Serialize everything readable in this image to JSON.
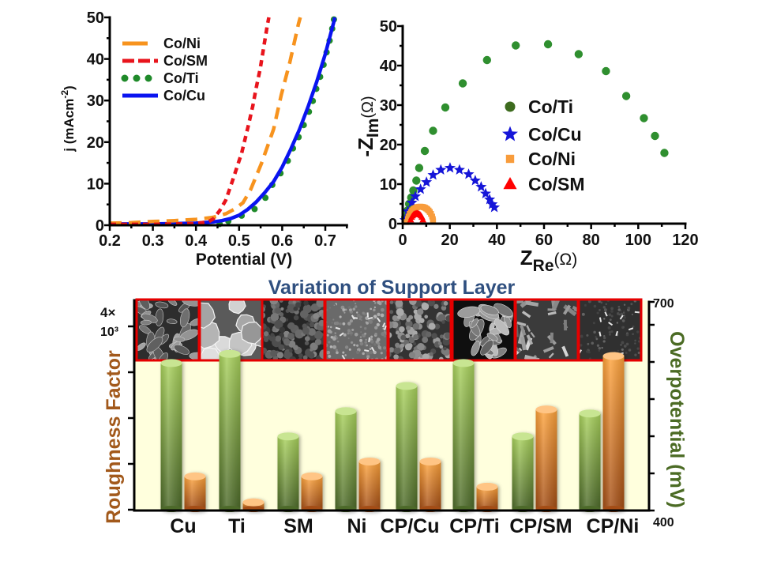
{
  "chart_data": [
    {
      "type": "line",
      "title": "",
      "xlabel": "Potential (V)",
      "ylabel": {
        "text": "j (mAcm",
        "sup": "-2",
        "tail": ")"
      },
      "xlim": [
        0.2,
        0.75
      ],
      "ylim": [
        0,
        50
      ],
      "xticks": [
        "0.2",
        "0.3",
        "0.4",
        "0.5",
        "0.6",
        "0.7"
      ],
      "yticks": [
        "0",
        "10",
        "20",
        "30",
        "40",
        "50"
      ],
      "grid": false,
      "legend": "top-left",
      "series": [
        {
          "name": "Co/Ni",
          "style": "long-dash",
          "color": "#f7931e",
          "points": [
            [
              0.2,
              0.5
            ],
            [
              0.25,
              0.6
            ],
            [
              0.3,
              0.9
            ],
            [
              0.35,
              1.1
            ],
            [
              0.4,
              1.4
            ],
            [
              0.44,
              1.9
            ],
            [
              0.47,
              2.8
            ],
            [
              0.49,
              3.9
            ],
            [
              0.509,
              5.4
            ],
            [
              0.527,
              8.6
            ],
            [
              0.552,
              14.9
            ],
            [
              0.58,
              23.1
            ],
            [
              0.598,
              31.4
            ],
            [
              0.618,
              39.3
            ],
            [
              0.638,
              48.5
            ],
            [
              0.642,
              50
            ]
          ]
        },
        {
          "name": "Co/SM",
          "style": "short-dash",
          "color": "#e8141c",
          "points": [
            [
              0.2,
              0.2
            ],
            [
              0.3,
              0.2
            ],
            [
              0.4,
              0.4
            ],
            [
              0.43,
              0.9
            ],
            [
              0.44,
              1.5
            ],
            [
              0.455,
              3.5
            ],
            [
              0.469,
              6.0
            ],
            [
              0.484,
              10.5
            ],
            [
              0.506,
              17.4
            ],
            [
              0.521,
              23.8
            ],
            [
              0.532,
              28.8
            ],
            [
              0.539,
              32.7
            ],
            [
              0.549,
              37.7
            ],
            [
              0.558,
              43.4
            ],
            [
              0.565,
              47.8
            ],
            [
              0.569,
              50
            ]
          ]
        },
        {
          "name": "Co/Ti",
          "style": "dotted",
          "color": "#1f8a2a",
          "points": [
            [
              0.455,
              0.3
            ],
            [
              0.475,
              1.0
            ],
            [
              0.506,
              2.3
            ],
            [
              0.536,
              3.9
            ],
            [
              0.561,
              6.6
            ],
            [
              0.577,
              9.7
            ],
            [
              0.596,
              12.5
            ],
            [
              0.613,
              15.5
            ],
            [
              0.625,
              18.5
            ],
            [
              0.638,
              21.2
            ],
            [
              0.65,
              24.1
            ],
            [
              0.662,
              27.3
            ],
            [
              0.671,
              29.9
            ],
            [
              0.679,
              32.8
            ],
            [
              0.688,
              35.7
            ],
            [
              0.696,
              38.6
            ],
            [
              0.703,
              41.6
            ],
            [
              0.71,
              44.4
            ],
            [
              0.716,
              47.3
            ],
            [
              0.72,
              49.5
            ]
          ]
        },
        {
          "name": "Co/Cu",
          "style": "solid",
          "color": "#0a14f0",
          "points": [
            [
              0.2,
              0.3
            ],
            [
              0.3,
              0.3
            ],
            [
              0.4,
              0.5
            ],
            [
              0.44,
              0.8
            ],
            [
              0.46,
              1.1
            ],
            [
              0.48,
              1.6
            ],
            [
              0.5,
              2.4
            ],
            [
              0.52,
              3.8
            ],
            [
              0.54,
              5.6
            ],
            [
              0.56,
              7.9
            ],
            [
              0.58,
              10.5
            ],
            [
              0.6,
              14.0
            ],
            [
              0.62,
              18.3
            ],
            [
              0.64,
              23.0
            ],
            [
              0.66,
              28.5
            ],
            [
              0.68,
              34.5
            ],
            [
              0.7,
              41.2
            ],
            [
              0.72,
              49.0
            ],
            [
              0.722,
              50
            ]
          ]
        }
      ]
    },
    {
      "type": "scatter",
      "title": "",
      "xlabel": {
        "text": "Z",
        "sub": "Re",
        "tail": "(Ω)"
      },
      "ylabel": {
        "text": "-Z",
        "sub": "Im",
        "tail": "(Ω)"
      },
      "xlim": [
        0,
        120
      ],
      "ylim": [
        0,
        50
      ],
      "xticks": [
        "0",
        "20",
        "40",
        "60",
        "80",
        "100",
        "120"
      ],
      "yticks": [
        "0",
        "10",
        "20",
        "30",
        "40",
        "50"
      ],
      "grid": false,
      "legend": "center",
      "series": [
        {
          "name": "Co/Ti",
          "marker": "circle",
          "color": "#2f8f2f",
          "legend_color": "#3d6b1e",
          "points": [
            [
              1.1,
              1.6
            ],
            [
              2.0,
              3.3
            ],
            [
              2.7,
              5.0
            ],
            [
              3.6,
              6.6
            ],
            [
              4.5,
              8.4
            ],
            [
              5.8,
              10.9
            ],
            [
              7.0,
              14.1
            ],
            [
              9.4,
              18.4
            ],
            [
              12.9,
              23.5
            ],
            [
              18.1,
              29.4
            ],
            [
              25.5,
              35.5
            ],
            [
              35.8,
              41.4
            ],
            [
              48.0,
              45.1
            ],
            [
              61.7,
              45.4
            ],
            [
              74.7,
              42.9
            ],
            [
              86.3,
              38.6
            ],
            [
              94.9,
              32.3
            ],
            [
              102.4,
              26.7
            ],
            [
              107.1,
              22.2
            ],
            [
              111.1,
              17.9
            ]
          ]
        },
        {
          "name": "Co/Cu",
          "marker": "star",
          "color": "#1515d8",
          "legend_color": "#1515d8",
          "points": [
            [
              1.0,
              0.9
            ],
            [
              2.2,
              3.1
            ],
            [
              3.9,
              5.3
            ],
            [
              5.4,
              6.9
            ],
            [
              7.6,
              8.7
            ],
            [
              10.1,
              10.5
            ],
            [
              12.9,
              12.3
            ],
            [
              16.2,
              13.6
            ],
            [
              20.1,
              14.1
            ],
            [
              24.1,
              13.6
            ],
            [
              28.0,
              12.5
            ],
            [
              30.8,
              10.9
            ],
            [
              33.3,
              9.3
            ],
            [
              35.2,
              7.6
            ],
            [
              36.9,
              6.1
            ],
            [
              38.0,
              4.9
            ],
            [
              38.9,
              4.1
            ]
          ]
        },
        {
          "name": "Co/Ni",
          "marker": "square",
          "color": "#f89c3c",
          "legend_color": "#f89c3c",
          "points": [
            [
              1.6,
              0.4
            ],
            [
              2.2,
              1.15
            ],
            [
              2.5,
              1.79
            ],
            [
              3.0,
              2.47
            ],
            [
              3.5,
              2.95
            ],
            [
              4.0,
              3.32
            ],
            [
              4.5,
              3.6
            ],
            [
              5.0,
              3.83
            ],
            [
              5.5,
              4.01
            ],
            [
              6.0,
              4.14
            ],
            [
              6.5,
              4.23
            ],
            [
              7.0,
              4.28
            ],
            [
              7.5,
              4.3
            ],
            [
              8.0,
              4.28
            ],
            [
              8.5,
              4.23
            ],
            [
              9.0,
              4.14
            ],
            [
              9.5,
              4.01
            ],
            [
              10.0,
              3.83
            ],
            [
              10.5,
              3.6
            ],
            [
              11.0,
              3.32
            ],
            [
              11.5,
              2.95
            ],
            [
              12.0,
              2.47
            ],
            [
              12.5,
              1.79
            ],
            [
              12.8,
              1.15
            ],
            [
              12.9,
              0.6
            ]
          ]
        },
        {
          "name": "Co/SM",
          "marker": "triangle",
          "color": "#ff0000",
          "legend_color": "#ff0000",
          "points": [
            [
              3.4,
              0.96
            ],
            [
              3.8,
              1.61
            ],
            [
              4.2,
              1.99
            ],
            [
              4.6,
              2.25
            ],
            [
              5.0,
              2.43
            ],
            [
              5.4,
              2.54
            ],
            [
              5.8,
              2.59
            ],
            [
              6.2,
              2.59
            ],
            [
              6.6,
              2.54
            ],
            [
              7.0,
              2.43
            ],
            [
              7.4,
              2.25
            ],
            [
              7.8,
              1.99
            ],
            [
              8.2,
              1.61
            ],
            [
              8.6,
              0.96
            ]
          ]
        }
      ]
    },
    {
      "type": "bar",
      "title": "Variation of Support Layer",
      "categories": [
        "Cu",
        "Ti",
        "SM",
        "Ni",
        "CP/Cu",
        "CP/Ti",
        "CP/SM",
        "CP/Ni"
      ],
      "ylabel_left": "Roughness Factor",
      "ylabel_right": "Overpotential (mV)",
      "ylim_left": [
        0,
        4000
      ],
      "ylim_right": [
        400,
        700
      ],
      "left_top_tick_label": [
        "4×",
        "10³"
      ],
      "right_tick_labels": {
        "top": "700",
        "bottom": "400"
      },
      "grid": false,
      "series": [
        {
          "name": "Roughness Factor",
          "axis": "left",
          "color_top": "#a9d25c",
          "color_bottom": "#4d6a2a",
          "cap_color": "#c8e592",
          "values": [
            3200,
            3400,
            1600,
            2150,
            2700,
            3200,
            1600,
            2100
          ]
        },
        {
          "name": "Overpotential (mV)",
          "axis": "right",
          "color_top": "#ffa43c",
          "color_bottom": "#a44e16",
          "cap_color": "#ffc585",
          "values": [
            446,
            411,
            446,
            466,
            466,
            432,
            536,
            608
          ]
        }
      ],
      "colors": {
        "plot_background": "#ffffdd",
        "image_frame": "#e60000",
        "title": "#2f4f7f",
        "left_label": "#a2591b",
        "right_label": "#4b6b24"
      }
    }
  ]
}
